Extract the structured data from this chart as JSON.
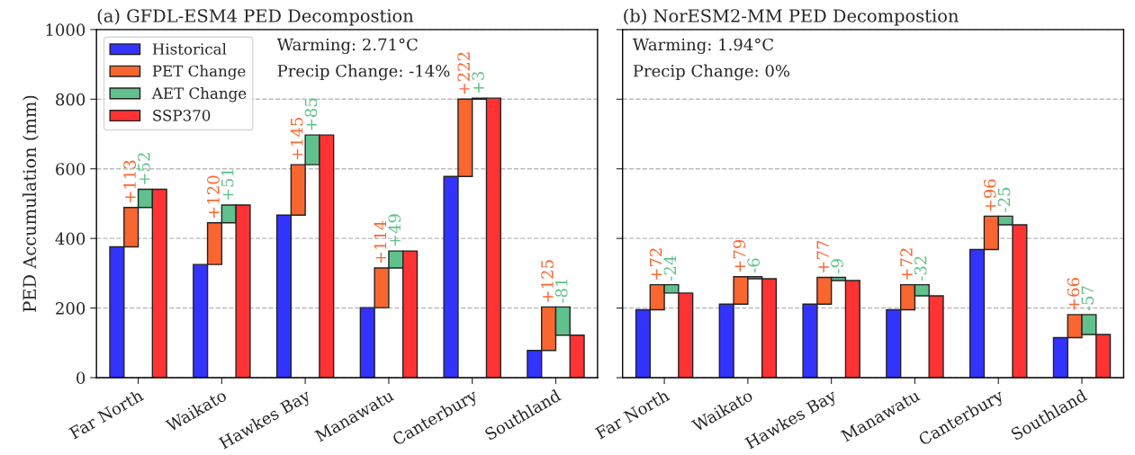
{
  "chart_data": [
    {
      "type": "bar",
      "title": "(a) GFDL-ESM4 PED Decompostion",
      "ylabel": "PED Accumulation (mm)",
      "categories": [
        "Far North",
        "Waikato",
        "Hawkes Bay",
        "Manawatu",
        "Canterbury",
        "Southland"
      ],
      "series": [
        {
          "name": "Historical",
          "color": "#3333ff",
          "values": [
            376,
            325,
            467,
            201,
            578,
            78
          ]
        },
        {
          "name": "PET Change",
          "color": "#f96630",
          "values": [
            113,
            120,
            145,
            114,
            222,
            125
          ],
          "base": [
            376,
            325,
            467,
            201,
            578,
            78
          ],
          "value_labels": [
            "+113",
            "+120",
            "+145",
            "+114",
            "+222",
            "+125"
          ]
        },
        {
          "name": "AET Change",
          "color": "#60c18c",
          "values": [
            52,
            51,
            85,
            49,
            3,
            -81
          ],
          "base": [
            489,
            445,
            612,
            315,
            800,
            203
          ],
          "value_labels": [
            "+52",
            "+51",
            "+85",
            "+49",
            "+3",
            "-81"
          ]
        },
        {
          "name": "SSP370",
          "color": "#ff3333",
          "values": [
            541,
            496,
            697,
            364,
            803,
            122
          ]
        }
      ],
      "annotations": [
        "Warming: 2.71°C",
        "Precip Change: -14%"
      ],
      "ylim": [
        0,
        1000
      ],
      "yticks": [
        0,
        200,
        400,
        600,
        800,
        1000
      ],
      "grid": "y",
      "legend": "top left"
    },
    {
      "type": "bar",
      "title": "(b) NorESM2-MM PED Decompostion",
      "categories": [
        "Far North",
        "Waikato",
        "Hawkes Bay",
        "Manawatu",
        "Canterbury",
        "Southland"
      ],
      "series": [
        {
          "color": "#3333ff",
          "values": [
            195,
            211,
            211,
            195,
            368,
            115
          ]
        },
        {
          "color": "#f96630",
          "values": [
            72,
            79,
            77,
            72,
            96,
            66
          ],
          "base": [
            195,
            211,
            211,
            195,
            368,
            115
          ],
          "value_labels": [
            "+72",
            "+79",
            "+77",
            "+72",
            "+96",
            "+66"
          ]
        },
        {
          "color": "#60c18c",
          "values": [
            -24,
            -6,
            -9,
            -32,
            -25,
            -57
          ],
          "base": [
            267,
            290,
            288,
            267,
            464,
            181
          ],
          "value_labels": [
            "-24",
            "-6",
            "-9",
            "-32",
            "-25",
            "-57"
          ]
        },
        {
          "color": "#ff3333",
          "values": [
            243,
            284,
            279,
            235,
            439,
            124
          ]
        }
      ],
      "annotations": [
        "Warming: 1.94°C",
        "Precip Change: 0%"
      ],
      "ylim": [
        0,
        1000
      ],
      "yticks": [
        0,
        200,
        400,
        600,
        800,
        1000
      ],
      "grid": "y",
      "tick_labels": "x"
    }
  ]
}
